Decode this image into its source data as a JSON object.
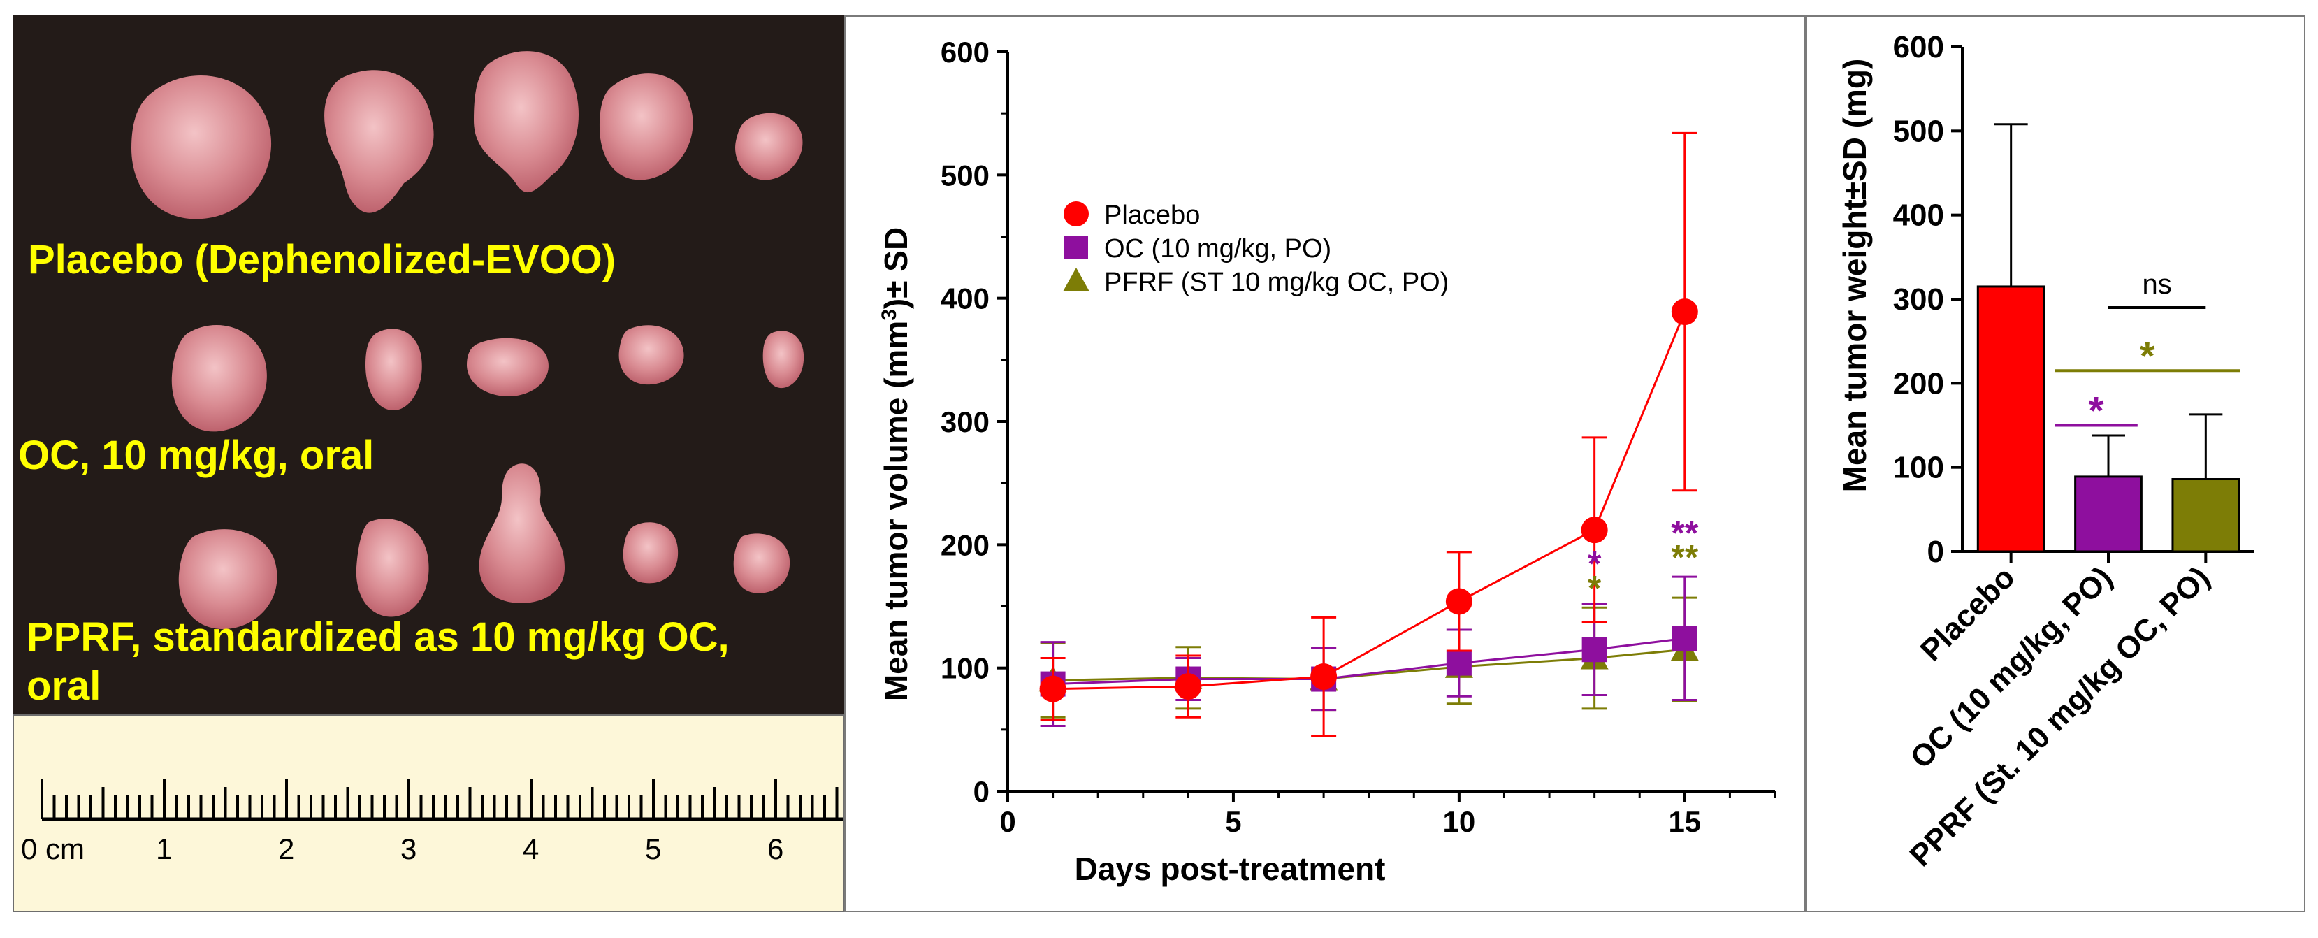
{
  "photo": {
    "labels": [
      "Placebo (Dephenolized-EVOO)",
      "OC, 10 mg/kg, oral",
      "PPRF, standardized as 10 mg/kg OC,",
      "oral"
    ]
  },
  "ruler": {
    "numbers": [
      "0 cm",
      "1",
      "2",
      "3",
      "4",
      "5",
      "6"
    ]
  },
  "colors": {
    "placebo": "#ff0000",
    "oc": "#8e0f9e",
    "pfrf": "#7d7d06",
    "photo_bg": "#231b18",
    "label_yellow": "#ffff00"
  },
  "chart_data": [
    {
      "type": "line",
      "title": "",
      "xlabel": "Days post-treatment",
      "ylabel_pre": "Mean tumor volume (mm",
      "ylabel_sup": "3",
      "ylabel_post": ")± SD",
      "xlim": [
        0,
        17
      ],
      "ylim": [
        0,
        600
      ],
      "xticks": [
        0,
        5,
        10,
        15
      ],
      "yticks": [
        0,
        100,
        200,
        300,
        400,
        500,
        600
      ],
      "legend_position": "top-left",
      "series": [
        {
          "name": "Placebo",
          "marker": "circle",
          "color": "#ff0000",
          "x": [
            1,
            4,
            7,
            10,
            13,
            15
          ],
          "y": [
            83,
            85,
            93,
            154,
            212,
            389
          ],
          "sd": [
            25,
            25,
            48,
            40,
            75,
            145
          ]
        },
        {
          "name": "OC (10 mg/kg, PO)",
          "marker": "square",
          "color": "#8e0f9e",
          "x": [
            1,
            4,
            7,
            10,
            13,
            15
          ],
          "y": [
            87,
            91,
            91,
            104,
            115,
            124
          ],
          "sd": [
            34,
            17,
            25,
            27,
            37,
            50
          ]
        },
        {
          "name": "PFRF (ST 10 mg/kg OC, PO)",
          "marker": "triangle",
          "color": "#7d7d06",
          "x": [
            1,
            4,
            7,
            10,
            13,
            15
          ],
          "y": [
            90,
            92,
            91,
            101,
            108,
            115
          ],
          "sd": [
            30,
            25,
            25,
            30,
            41,
            42
          ]
        }
      ],
      "annotations": [
        {
          "text": "*",
          "x": 13,
          "y": 175,
          "color": "#8e0f9e"
        },
        {
          "text": "*",
          "x": 13,
          "y": 155,
          "color": "#7d7d06"
        },
        {
          "text": "**",
          "x": 15,
          "y": 200,
          "color": "#8e0f9e"
        },
        {
          "text": "**",
          "x": 15,
          "y": 180,
          "color": "#7d7d06"
        }
      ]
    },
    {
      "type": "bar",
      "title": "",
      "xlabel": "",
      "ylabel": "Mean tumor weight±SD (mg)",
      "ylim": [
        0,
        600
      ],
      "yticks": [
        0,
        100,
        200,
        300,
        400,
        500,
        600
      ],
      "categories": [
        "Placebo",
        "OC (10 mg/kg, PO)",
        "PPRF (St. 10 mg/kg OC, PO)"
      ],
      "values": [
        315,
        89,
        86
      ],
      "sd": [
        193,
        49,
        77
      ],
      "colors": [
        "#ff0000",
        "#8e0f9e",
        "#7d7d06"
      ],
      "significance": [
        {
          "text": "ns",
          "from": 1,
          "to": 2,
          "y": 290,
          "color": "#000000"
        },
        {
          "text": "*",
          "from": 0.45,
          "to": 2.35,
          "y": 215,
          "color": "#7d7d06"
        },
        {
          "text": "*",
          "from": 0.45,
          "to": 1.3,
          "y": 150,
          "color": "#8e0f9e"
        }
      ]
    }
  ]
}
